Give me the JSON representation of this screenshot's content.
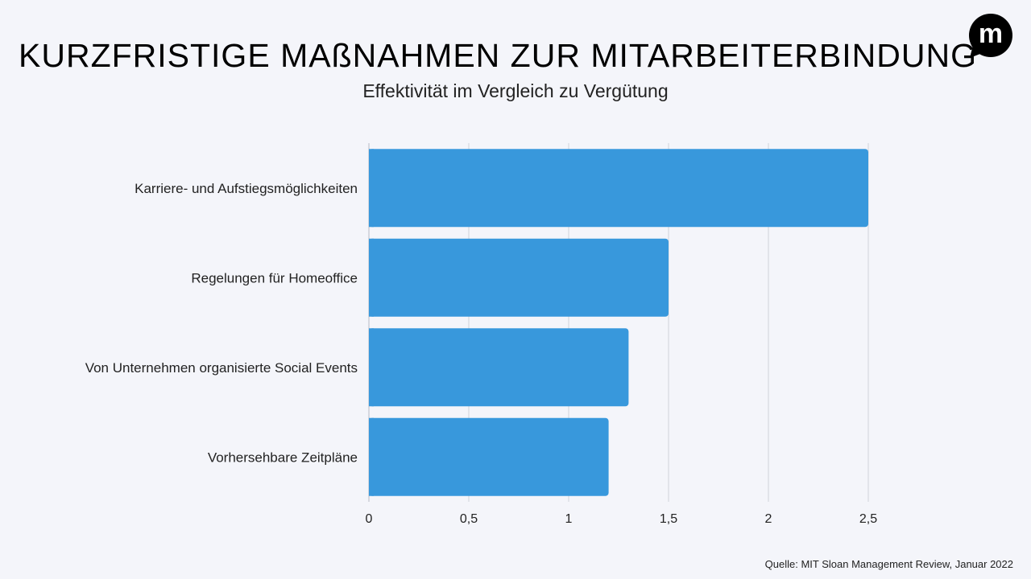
{
  "chart_data": {
    "type": "bar",
    "orientation": "horizontal",
    "title": "KURZFRISTIGE MAßNAHMEN ZUR MITARBEITERBINDUNG",
    "subtitle": "Effektivität im Vergleich zu Vergütung",
    "categories": [
      "Karriere- und Aufstiegsmöglichkeiten",
      "Regelungen für Homeoffice",
      "Von Unternehmen organisierte Social Events",
      "Vorhersehbare Zeitpläne"
    ],
    "values": [
      2.5,
      1.5,
      1.3,
      1.2
    ],
    "xlim": [
      0,
      2.5
    ],
    "xticks": [
      0,
      0.5,
      1,
      1.5,
      2,
      2.5
    ],
    "xtick_labels": [
      "0",
      "0,5",
      "1",
      "1,5",
      "2",
      "2,5"
    ],
    "grid": true,
    "bar_color": "#3898dc",
    "grid_color": "#cfd2d9"
  },
  "source": "Quelle: MIT Sloan Management Review, Januar 2022",
  "logo": {
    "icon": "m-speech-bubble-icon",
    "letter": "m"
  },
  "colors": {
    "background": "#f4f5fa"
  }
}
